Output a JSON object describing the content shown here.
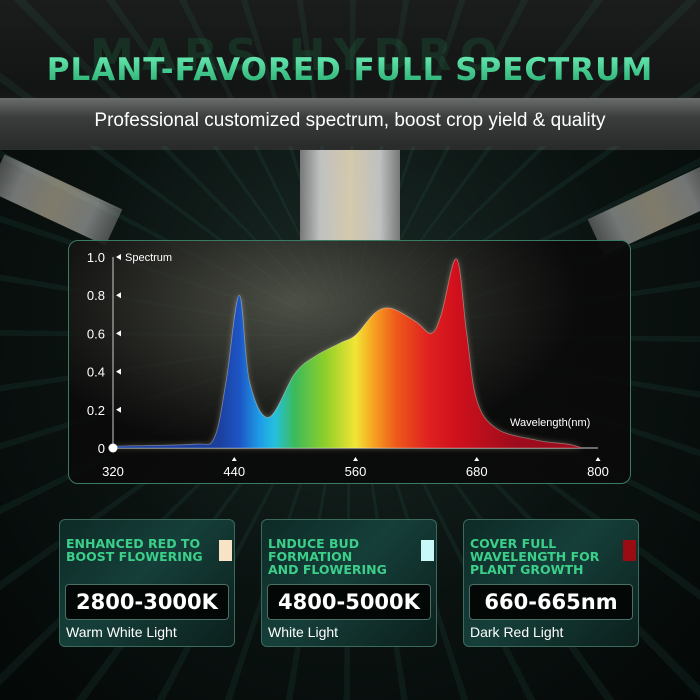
{
  "header": {
    "logo_text": "MARS HYDRO",
    "title": "PLANT-FAVORED FULL SPECTRUM",
    "subtitle": "Professional customized spectrum, boost crop yield & quality"
  },
  "chart_data": {
    "type": "area",
    "xlabel": "Wavelength(nm)",
    "ylabel": "Spectrum",
    "xlim": [
      320,
      800
    ],
    "ylim": [
      0,
      1.0
    ],
    "x_ticks": [
      "320",
      "440",
      "560",
      "680",
      "800"
    ],
    "y_ticks": [
      "0",
      "0.2",
      "0.4",
      "0.6",
      "0.8",
      "1.0"
    ],
    "grid": false,
    "x": [
      320,
      400,
      420,
      432,
      445,
      455,
      474,
      500,
      520,
      545,
      560,
      580,
      596,
      620,
      635,
      645,
      660,
      670,
      680,
      700,
      740,
      770,
      785
    ],
    "y": [
      0.01,
      0.02,
      0.05,
      0.35,
      0.8,
      0.35,
      0.16,
      0.39,
      0.48,
      0.55,
      0.59,
      0.71,
      0.73,
      0.66,
      0.6,
      0.7,
      0.99,
      0.6,
      0.25,
      0.1,
      0.04,
      0.02,
      0.0
    ],
    "fill": "visible-spectrum gradient (blue → cyan → green → yellow → orange → red)"
  },
  "cards": [
    {
      "heading": [
        "ENHANCED RED TO",
        "BOOST FLOWERING"
      ],
      "value": "2800-3000K",
      "label": "Warm White Light",
      "swatch": "#f8e4c4"
    },
    {
      "heading": [
        "LNDUCE BUD",
        "FORMATION",
        "AND FLOWERING"
      ],
      "value": "4800-5000K",
      "label": "White Light",
      "swatch": "#c8f8f8"
    },
    {
      "heading": [
        "COVER FULL",
        "WAVELENGTH FOR",
        "PLANT GROWTH"
      ],
      "value": "660-665nm",
      "label": "Dark Red Light",
      "swatch": "#9a0c14"
    }
  ]
}
